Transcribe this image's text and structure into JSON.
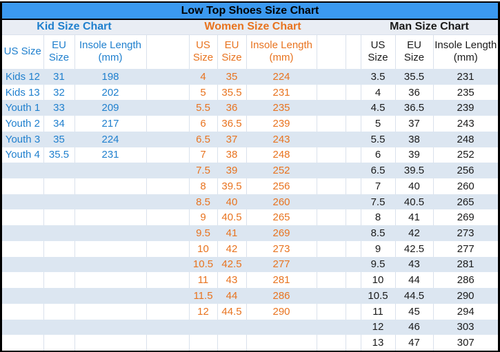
{
  "title": "Low Top Shoes Size Chart",
  "colors": {
    "title-bar": "#3B99F0",
    "band": "#E9EDF4",
    "stripe": "#DCE6F1",
    "kid": "#2080CE",
    "women": "#E8731F",
    "man": "#1A1A1A"
  },
  "chart_data": [
    {
      "type": "table",
      "title": "Kid Size Chart",
      "columns": [
        [
          "US Size"
        ],
        [
          "EU",
          "Size"
        ],
        [
          "Insole Length",
          "(mm)"
        ]
      ],
      "rows": [
        [
          "Kids 12",
          "31",
          "198"
        ],
        [
          "Kids 13",
          "32",
          "202"
        ],
        [
          "Youth 1",
          "33",
          "209"
        ],
        [
          "Youth 2",
          "34",
          "217"
        ],
        [
          "Youth 3",
          "35",
          "224"
        ],
        [
          "Youth 4",
          "35.5",
          "231"
        ]
      ]
    },
    {
      "type": "table",
      "title": "Women Size Chart",
      "columns": [
        [
          "US",
          "Size"
        ],
        [
          "EU",
          "Size"
        ],
        [
          "Insole Length",
          "(mm)"
        ]
      ],
      "rows": [
        [
          "4",
          "35",
          "224"
        ],
        [
          "5",
          "35.5",
          "231"
        ],
        [
          "5.5",
          "36",
          "235"
        ],
        [
          "6",
          "36.5",
          "239"
        ],
        [
          "6.5",
          "37",
          "243"
        ],
        [
          "7",
          "38",
          "248"
        ],
        [
          "7.5",
          "39",
          "252"
        ],
        [
          "8",
          "39.5",
          "256"
        ],
        [
          "8.5",
          "40",
          "260"
        ],
        [
          "9",
          "40.5",
          "265"
        ],
        [
          "9.5",
          "41",
          "269"
        ],
        [
          "10",
          "42",
          "273"
        ],
        [
          "10.5",
          "42.5",
          "277"
        ],
        [
          "11",
          "43",
          "281"
        ],
        [
          "11.5",
          "44",
          "286"
        ],
        [
          "12",
          "44.5",
          "290"
        ]
      ]
    },
    {
      "type": "table",
      "title": "Man Size Chart",
      "columns": [
        [
          "US",
          "Size"
        ],
        [
          "EU",
          "Size"
        ],
        [
          "Insole Length",
          "(mm)"
        ]
      ],
      "rows": [
        [
          "3.5",
          "35.5",
          "231"
        ],
        [
          "4",
          "36",
          "235"
        ],
        [
          "4.5",
          "36.5",
          "239"
        ],
        [
          "5",
          "37",
          "243"
        ],
        [
          "5.5",
          "38",
          "248"
        ],
        [
          "6",
          "39",
          "252"
        ],
        [
          "6.5",
          "39.5",
          "256"
        ],
        [
          "7",
          "40",
          "260"
        ],
        [
          "7.5",
          "40.5",
          "265"
        ],
        [
          "8",
          "41",
          "269"
        ],
        [
          "8.5",
          "42",
          "273"
        ],
        [
          "9",
          "42.5",
          "277"
        ],
        [
          "9.5",
          "43",
          "281"
        ],
        [
          "10",
          "44",
          "286"
        ],
        [
          "10.5",
          "44.5",
          "290"
        ],
        [
          "11",
          "45",
          "294"
        ],
        [
          "12",
          "46",
          "303"
        ],
        [
          "13",
          "47",
          "307"
        ]
      ]
    }
  ]
}
